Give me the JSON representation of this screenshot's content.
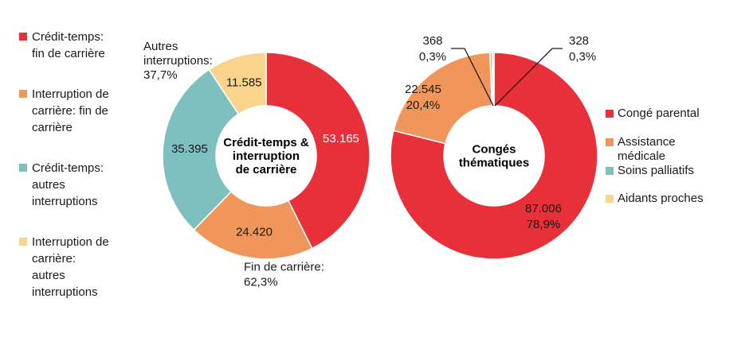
{
  "legend_left": [
    {
      "label": "Crédit-temps:\nfin de carrière",
      "color": "#E8303A"
    },
    {
      "label": "Interruption de\ncarrière: fin de\ncarrière",
      "color": "#F0965A"
    },
    {
      "label": "Crédit-temps:\nautres\ninterruptions",
      "color": "#7EC0C0"
    },
    {
      "label": "Interruption de\ncarrière:\nautres\ninterruptions",
      "color": "#FAD48C"
    }
  ],
  "legend_right": [
    {
      "label": "Congé parental",
      "color": "#E8303A"
    },
    {
      "label": "Assistance\nmédicale",
      "color": "#F0965A"
    },
    {
      "label": "Soins palliatifs",
      "color": "#7EC0C0"
    },
    {
      "label": "Aidants proches",
      "color": "#FAD48C"
    }
  ],
  "chart_data": [
    {
      "type": "pie",
      "title": "Crédit-temps &\ninterruption\nde carrière",
      "categories": [
        "Crédit-temps: fin de carrière",
        "Interruption de carrière: fin de carrière",
        "Crédit-temps: autres interruptions",
        "Interruption de carrière: autres interruptions"
      ],
      "values": [
        53165,
        24420,
        35395,
        11585
      ],
      "value_labels": [
        "53.165",
        "24.420",
        "35.395",
        "11.585"
      ],
      "colors": [
        "#E8303A",
        "#F0965A",
        "#7EC0C0",
        "#FAD48C"
      ],
      "annotations": [
        "Autres\ninterruptions:\n37,7%",
        "Fin de carrière:\n62,3%"
      ]
    },
    {
      "type": "pie",
      "title": "Congés\nthématiques",
      "categories": [
        "Congé parental",
        "Assistance médicale",
        "Soins palliatifs",
        "Aidants proches"
      ],
      "values": [
        87006,
        22545,
        368,
        328
      ],
      "value_labels": [
        "87.006\n78,9%",
        "22.545\n20,4%",
        "368\n0,3%",
        "328\n0,3%"
      ],
      "colors": [
        "#E8303A",
        "#F0965A",
        "#7EC0C0",
        "#FAD48C"
      ]
    }
  ]
}
